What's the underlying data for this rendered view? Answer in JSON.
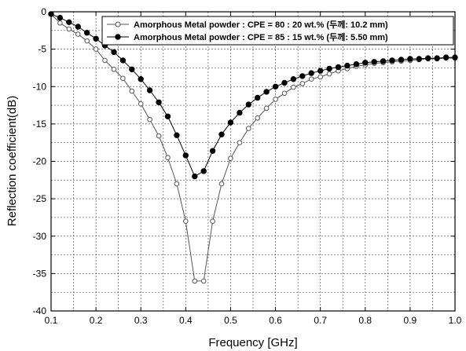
{
  "chart_data": {
    "type": "line",
    "xlabel": "Frequency [GHz]",
    "ylabel": "Reflection coefficient(dB)",
    "xlim": [
      0.1,
      1.0
    ],
    "ylim": [
      -40,
      0
    ],
    "x_ticks": [
      "0.1",
      "0.2",
      "0.3",
      "0.4",
      "0.5",
      "0.6",
      "0.7",
      "0.8",
      "0.9",
      "1.0"
    ],
    "y_ticks": [
      "0",
      "-5",
      "-10",
      "-15",
      "-20",
      "-25",
      "-30",
      "-35",
      "-40"
    ],
    "grid": true,
    "legend_position": "top-right",
    "series": [
      {
        "name": "Amorphous Metal powder : CPE = 80 : 20 wt.% (두께: 10.2 mm)",
        "marker": "open-circle",
        "color": "#555555",
        "x": [
          0.1,
          0.12,
          0.14,
          0.16,
          0.18,
          0.2,
          0.22,
          0.24,
          0.26,
          0.28,
          0.3,
          0.32,
          0.34,
          0.36,
          0.38,
          0.4,
          0.42,
          0.44,
          0.46,
          0.48,
          0.5,
          0.52,
          0.54,
          0.56,
          0.58,
          0.6,
          0.62,
          0.64,
          0.66,
          0.68,
          0.7,
          0.72,
          0.74,
          0.76,
          0.78,
          0.8,
          0.82,
          0.84,
          0.86,
          0.88,
          0.9,
          0.92,
          0.94,
          0.96,
          0.98,
          1.0
        ],
        "y": [
          -0.3,
          -1.5,
          -2.3,
          -3.0,
          -3.9,
          -5.0,
          -6.5,
          -7.7,
          -8.9,
          -10.6,
          -12.3,
          -14.4,
          -16.6,
          -19.5,
          -23.0,
          -28.0,
          -36.0,
          -36.0,
          -28.0,
          -23.0,
          -19.6,
          -17.5,
          -15.6,
          -14.2,
          -12.9,
          -11.7,
          -10.9,
          -10.1,
          -9.6,
          -9.0,
          -8.7,
          -8.3,
          -7.9,
          -7.6,
          -7.3,
          -7.1,
          -6.9,
          -6.8,
          -6.7,
          -6.6,
          -6.5,
          -6.4,
          -6.3,
          -6.3,
          -6.2,
          -6.2
        ]
      },
      {
        "name": "Amorphous Metal powder : CPE = 85 : 15 wt.% (두께: 5.50 mm)",
        "marker": "filled-circle",
        "color": "#000000",
        "x": [
          0.1,
          0.12,
          0.14,
          0.16,
          0.18,
          0.2,
          0.22,
          0.24,
          0.26,
          0.28,
          0.3,
          0.32,
          0.34,
          0.36,
          0.38,
          0.4,
          0.42,
          0.44,
          0.46,
          0.48,
          0.5,
          0.52,
          0.54,
          0.56,
          0.58,
          0.6,
          0.62,
          0.64,
          0.66,
          0.68,
          0.7,
          0.72,
          0.74,
          0.76,
          0.78,
          0.8,
          0.82,
          0.84,
          0.86,
          0.88,
          0.9,
          0.92,
          0.94,
          0.96,
          0.98,
          1.0
        ],
        "y": [
          -0.3,
          -0.8,
          -1.4,
          -2.0,
          -2.8,
          -3.6,
          -4.5,
          -5.4,
          -6.5,
          -7.7,
          -9.0,
          -10.5,
          -12.1,
          -14.0,
          -16.5,
          -19.2,
          -22.0,
          -21.3,
          -18.6,
          -16.4,
          -14.8,
          -13.5,
          -12.4,
          -11.5,
          -10.7,
          -10.0,
          -9.5,
          -9.0,
          -8.6,
          -8.2,
          -7.9,
          -7.6,
          -7.4,
          -7.2,
          -7.0,
          -6.8,
          -6.7,
          -6.6,
          -6.5,
          -6.4,
          -6.3,
          -6.3,
          -6.2,
          -6.2,
          -6.1,
          -6.1
        ]
      }
    ]
  }
}
